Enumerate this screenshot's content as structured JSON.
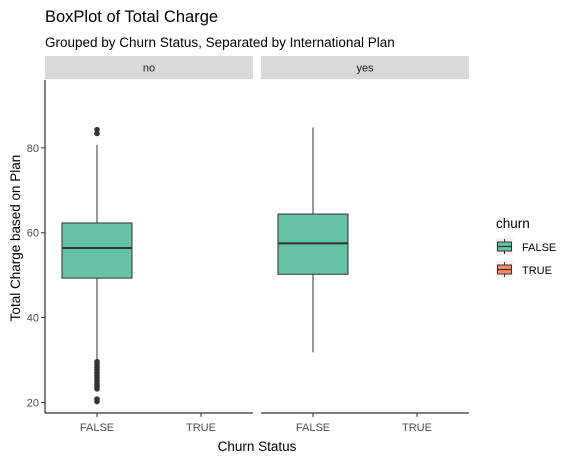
{
  "chart_data": {
    "type": "boxplot",
    "title": "BoxPlot of Total Charge",
    "subtitle": "Grouped by Churn Status, Separated by International Plan",
    "xlabel": "Churn Status",
    "ylabel": "Total Charge based on Plan",
    "categories": [
      "FALSE",
      "TRUE"
    ],
    "yticks": [
      20,
      40,
      60,
      80
    ],
    "ylim": [
      17.5,
      96
    ],
    "grid": false,
    "legend": {
      "title": "churn",
      "position": "right",
      "entries": [
        {
          "label": "FALSE",
          "color": "#66c2a5"
        },
        {
          "label": "TRUE",
          "color": "#fc8d62"
        }
      ]
    },
    "panels": [
      {
        "strip": "no",
        "boxes": [
          {
            "category": "FALSE",
            "series": "FALSE",
            "whisker_low": 29.0,
            "q1": 49.3,
            "median": 56.4,
            "q3": 62.3,
            "whisker_high": 80.7,
            "outliers": [
              84.3,
              83.4,
              29.6,
              28.9,
              28.2,
              27.6,
              26.9,
              26.3,
              25.7,
              25.0,
              24.4,
              23.8,
              23.2,
              20.8,
              20.2
            ]
          }
        ]
      },
      {
        "strip": "yes",
        "boxes": [
          {
            "category": "FALSE",
            "series": "FALSE",
            "whisker_low": 31.8,
            "q1": 50.2,
            "median": 57.5,
            "q3": 64.4,
            "whisker_high": 84.8,
            "outliers": []
          }
        ]
      }
    ]
  }
}
